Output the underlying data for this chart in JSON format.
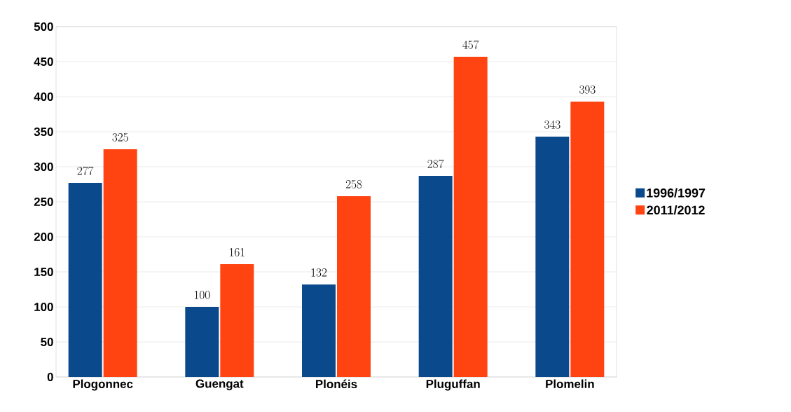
{
  "chart_data": {
    "type": "bar",
    "categories": [
      "Plogonnec",
      "Guengat",
      "Plonéis",
      "Pluguffan",
      "Plomelin"
    ],
    "series": [
      {
        "name": "1996/1997",
        "color": "#0a4a8c",
        "values": [
          277,
          100,
          132,
          287,
          343
        ]
      },
      {
        "name": "2011/2012",
        "color": "#ff4412",
        "values": [
          325,
          161,
          258,
          457,
          393
        ]
      }
    ],
    "ylim": [
      0,
      500
    ],
    "yticks": [
      0,
      50,
      100,
      150,
      200,
      250,
      300,
      350,
      400,
      450,
      500
    ],
    "grid": "y",
    "legend": "right",
    "data_labels": true
  }
}
